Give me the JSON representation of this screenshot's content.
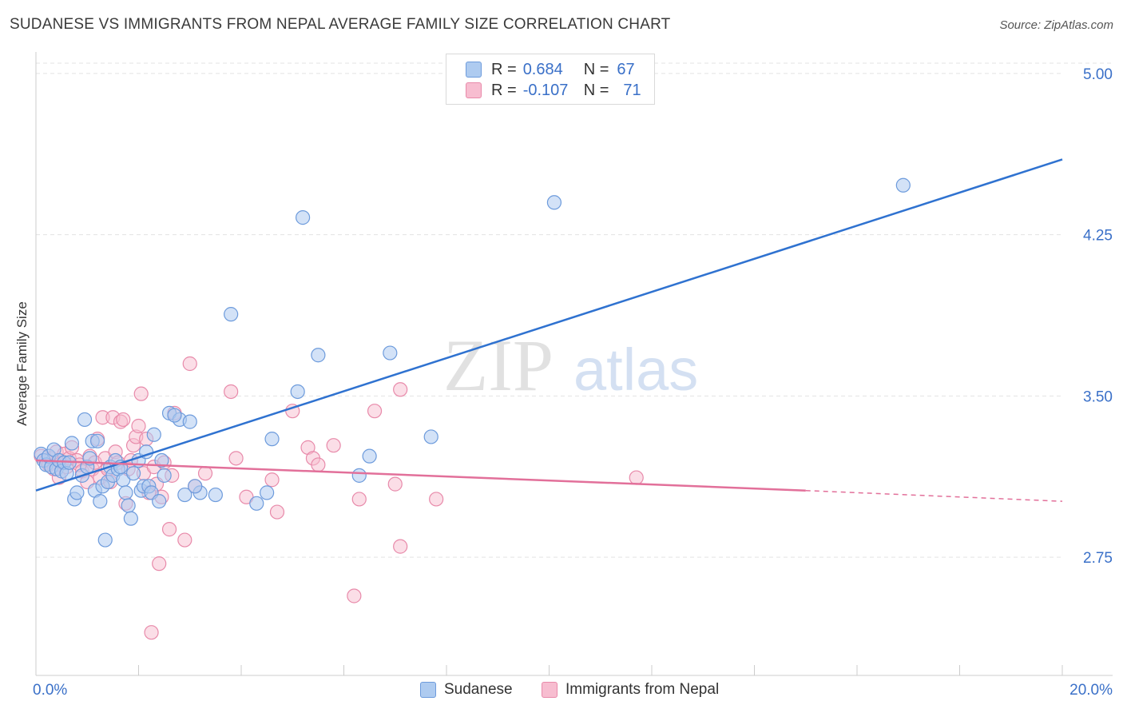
{
  "title": "SUDANESE VS IMMIGRANTS FROM NEPAL AVERAGE FAMILY SIZE CORRELATION CHART",
  "source": "Source: ZipAtlas.com",
  "watermark": {
    "part1": "ZIP",
    "part2": "atlas"
  },
  "legend_top": {
    "rows": [
      {
        "r_label": "R =",
        "r_value": "0.684",
        "n_label": "N =",
        "n_value": "67"
      },
      {
        "r_label": "R =",
        "r_value": "-0.107",
        "n_label": "N =",
        "n_value": "71"
      }
    ]
  },
  "legend_bottom": {
    "items": [
      "Sudanese",
      "Immigrants from Nepal"
    ]
  },
  "colors": {
    "blue_fill": "#aecbf0",
    "blue_stroke": "#6d9bdc",
    "blue_line": "#2f72d0",
    "pink_fill": "#f7bdd0",
    "pink_stroke": "#e88aaa",
    "pink_line": "#e2709a",
    "axis_text": "#3a70c8",
    "grid": "#e3e3e3"
  },
  "chart_data": {
    "type": "scatter",
    "title": "SUDANESE VS IMMIGRANTS FROM NEPAL AVERAGE FAMILY SIZE CORRELATION CHART",
    "xlabel": "",
    "ylabel": "Average Family Size",
    "xlim": [
      0,
      20
    ],
    "ylim": [
      2.2,
      5.1
    ],
    "x_tick_labels": [
      "0.0%",
      "20.0%"
    ],
    "y_ticks": [
      2.75,
      3.5,
      4.25,
      5.0
    ],
    "y_tick_labels": [
      "2.75",
      "3.50",
      "4.25",
      "5.00"
    ],
    "grid": true,
    "legend_position": "top-center",
    "series": [
      {
        "name": "Sudanese",
        "R": 0.684,
        "N": 67,
        "trend": {
          "x": [
            0,
            20
          ],
          "y": [
            3.06,
            4.6
          ]
        },
        "points": [
          [
            0.1,
            3.23
          ],
          [
            0.15,
            3.2
          ],
          [
            0.2,
            3.18
          ],
          [
            0.25,
            3.22
          ],
          [
            0.3,
            3.17
          ],
          [
            0.35,
            3.25
          ],
          [
            0.4,
            3.16
          ],
          [
            0.45,
            3.2
          ],
          [
            0.5,
            3.15
          ],
          [
            0.55,
            3.19
          ],
          [
            0.6,
            3.14
          ],
          [
            0.7,
            3.28
          ],
          [
            0.75,
            3.02
          ],
          [
            0.8,
            3.05
          ],
          [
            0.9,
            3.13
          ],
          [
            0.95,
            3.39
          ],
          [
            1.0,
            3.17
          ],
          [
            1.05,
            3.21
          ],
          [
            1.1,
            3.29
          ],
          [
            1.15,
            3.06
          ],
          [
            1.2,
            3.29
          ],
          [
            1.25,
            3.01
          ],
          [
            1.3,
            3.08
          ],
          [
            1.35,
            2.83
          ],
          [
            1.4,
            3.1
          ],
          [
            1.45,
            3.17
          ],
          [
            1.5,
            3.13
          ],
          [
            1.55,
            3.2
          ],
          [
            1.6,
            3.16
          ],
          [
            1.7,
            3.11
          ],
          [
            1.75,
            3.05
          ],
          [
            1.8,
            2.99
          ],
          [
            1.85,
            2.93
          ],
          [
            1.9,
            3.14
          ],
          [
            2.0,
            3.2
          ],
          [
            2.05,
            3.06
          ],
          [
            2.1,
            3.08
          ],
          [
            2.15,
            3.24
          ],
          [
            2.2,
            3.08
          ],
          [
            2.25,
            3.05
          ],
          [
            2.3,
            3.32
          ],
          [
            2.4,
            3.01
          ],
          [
            2.45,
            3.2
          ],
          [
            2.5,
            3.13
          ],
          [
            2.6,
            3.42
          ],
          [
            2.8,
            3.39
          ],
          [
            2.9,
            3.04
          ],
          [
            3.0,
            3.38
          ],
          [
            3.2,
            3.05
          ],
          [
            3.5,
            3.04
          ],
          [
            3.8,
            3.88
          ],
          [
            4.3,
            3.0
          ],
          [
            4.5,
            3.05
          ],
          [
            4.6,
            3.3
          ],
          [
            5.1,
            3.52
          ],
          [
            5.2,
            4.33
          ],
          [
            5.5,
            3.69
          ],
          [
            6.3,
            3.13
          ],
          [
            6.5,
            3.22
          ],
          [
            6.9,
            3.7
          ],
          [
            7.7,
            3.31
          ],
          [
            10.1,
            4.4
          ],
          [
            16.9,
            4.48
          ],
          [
            2.7,
            3.41
          ],
          [
            1.65,
            3.17
          ],
          [
            0.65,
            3.19
          ],
          [
            3.1,
            3.08
          ]
        ]
      },
      {
        "name": "Immigrants from Nepal",
        "R": -0.107,
        "N": 71,
        "trend": {
          "x": [
            0,
            15
          ],
          "y": [
            3.2,
            3.06
          ]
        },
        "trend_dashed": {
          "x": [
            15,
            20
          ],
          "y": [
            3.06,
            3.01
          ]
        },
        "points": [
          [
            0.1,
            3.22
          ],
          [
            0.2,
            3.2
          ],
          [
            0.25,
            3.18
          ],
          [
            0.3,
            3.21
          ],
          [
            0.35,
            3.16
          ],
          [
            0.4,
            3.24
          ],
          [
            0.45,
            3.12
          ],
          [
            0.5,
            3.19
          ],
          [
            0.55,
            3.23
          ],
          [
            0.6,
            3.17
          ],
          [
            0.65,
            3.21
          ],
          [
            0.7,
            3.26
          ],
          [
            0.8,
            3.2
          ],
          [
            0.85,
            3.18
          ],
          [
            0.9,
            3.15
          ],
          [
            1.0,
            3.1
          ],
          [
            1.05,
            3.22
          ],
          [
            1.1,
            3.16
          ],
          [
            1.15,
            3.19
          ],
          [
            1.2,
            3.3
          ],
          [
            1.25,
            3.12
          ],
          [
            1.3,
            3.4
          ],
          [
            1.35,
            3.21
          ],
          [
            1.4,
            3.16
          ],
          [
            1.45,
            3.1
          ],
          [
            1.5,
            3.4
          ],
          [
            1.55,
            3.24
          ],
          [
            1.6,
            3.19
          ],
          [
            1.65,
            3.38
          ],
          [
            1.7,
            3.39
          ],
          [
            1.75,
            3.0
          ],
          [
            1.8,
            3.16
          ],
          [
            1.85,
            3.2
          ],
          [
            1.9,
            3.27
          ],
          [
            1.95,
            3.31
          ],
          [
            2.0,
            3.36
          ],
          [
            2.05,
            3.51
          ],
          [
            2.1,
            3.14
          ],
          [
            2.15,
            3.3
          ],
          [
            2.2,
            3.05
          ],
          [
            2.25,
            2.4
          ],
          [
            2.3,
            3.17
          ],
          [
            2.35,
            3.09
          ],
          [
            2.4,
            2.72
          ],
          [
            2.45,
            3.03
          ],
          [
            2.5,
            3.19
          ],
          [
            2.6,
            2.88
          ],
          [
            2.65,
            3.13
          ],
          [
            2.7,
            3.42
          ],
          [
            2.9,
            2.83
          ],
          [
            3.0,
            3.65
          ],
          [
            3.1,
            3.08
          ],
          [
            3.3,
            3.14
          ],
          [
            3.8,
            3.52
          ],
          [
            3.9,
            3.21
          ],
          [
            4.1,
            3.03
          ],
          [
            4.6,
            3.11
          ],
          [
            4.7,
            2.96
          ],
          [
            5.0,
            3.43
          ],
          [
            5.3,
            3.26
          ],
          [
            5.4,
            3.21
          ],
          [
            5.5,
            3.18
          ],
          [
            5.8,
            3.27
          ],
          [
            6.2,
            2.57
          ],
          [
            6.3,
            3.02
          ],
          [
            6.6,
            3.43
          ],
          [
            7.0,
            3.09
          ],
          [
            7.1,
            3.53
          ],
          [
            7.1,
            2.8
          ],
          [
            7.8,
            3.02
          ],
          [
            11.7,
            3.12
          ]
        ]
      }
    ]
  }
}
